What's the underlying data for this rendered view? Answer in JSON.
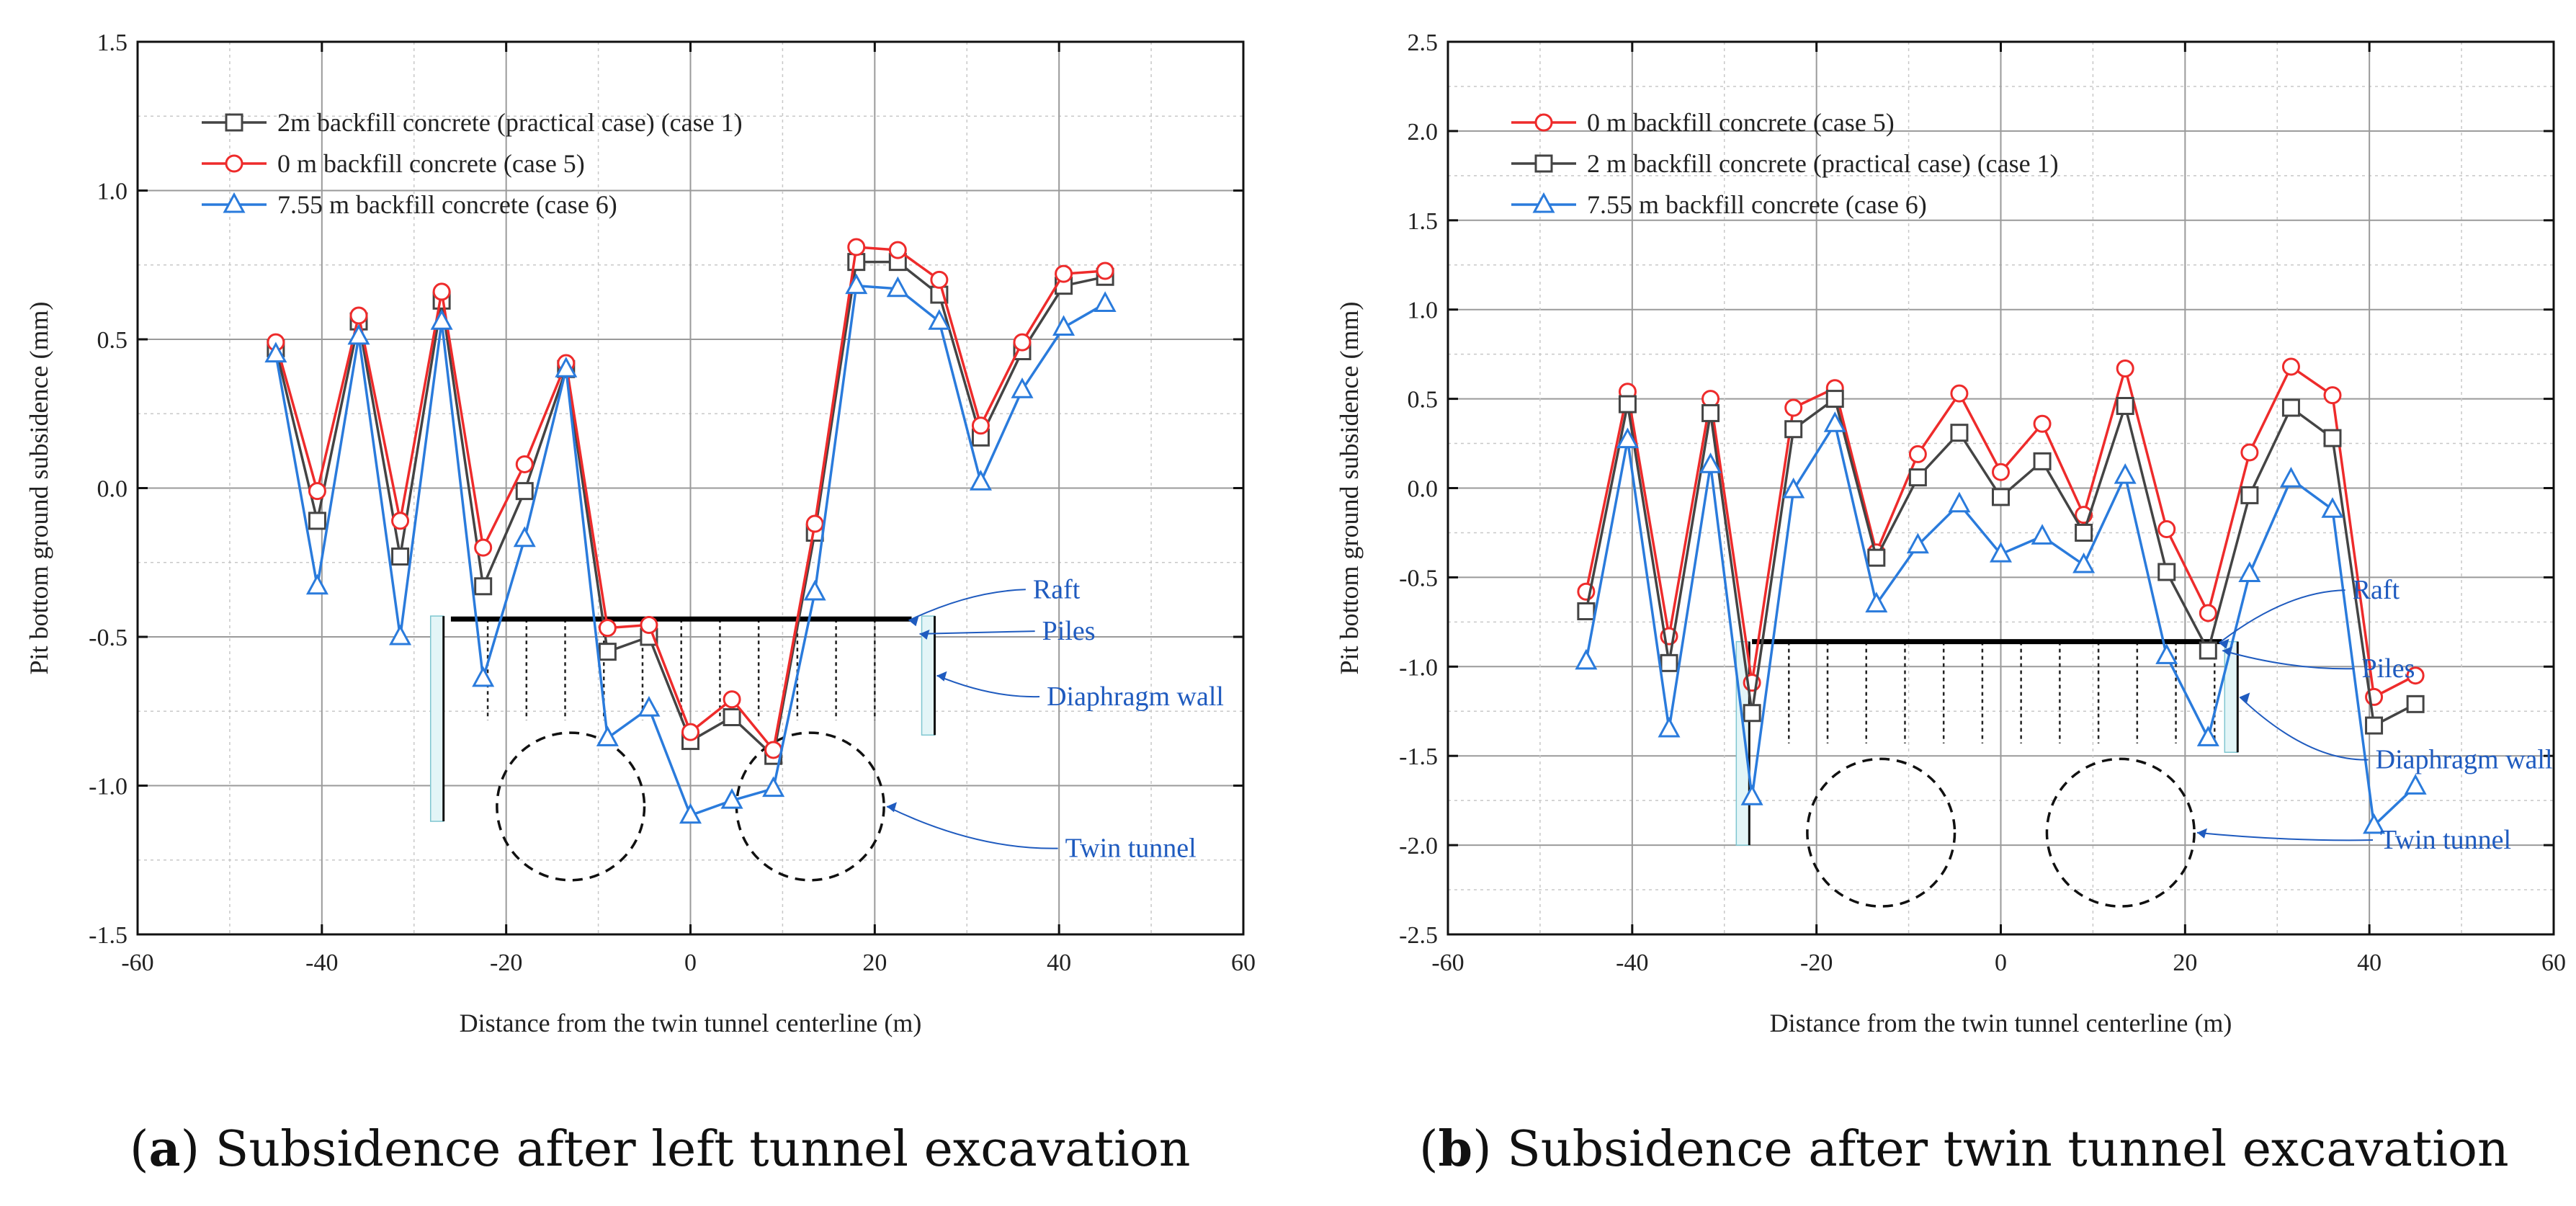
{
  "colors": {
    "case1": "#444444",
    "case5": "#ee2b2b",
    "case6": "#2a7bdc",
    "annot": "#1f5bbf"
  },
  "panels": [
    {
      "caption_letter": "a",
      "caption_text": " Subsidence after left tunnel excavation",
      "annotations": {
        "raft": "Raft",
        "piles": "Piles",
        "wall": "Diaphragm wall",
        "tunnel": "Twin tunnel"
      }
    },
    {
      "caption_letter": "b",
      "caption_text": " Subsidence after twin tunnel excavation",
      "annotations": {
        "raft": "Raft",
        "piles": "Piles",
        "wall": "Diaphragm wall",
        "tunnel": "Twin tunnel"
      }
    }
  ],
  "chart_data": [
    {
      "type": "line",
      "xlabel": "Distance from the twin tunnel centerline (m)",
      "ylabel": "Pit bottom ground subsidence  (mm)",
      "xlim": [
        -60,
        60
      ],
      "ylim": [
        -1.5,
        1.5
      ],
      "xticks": [
        -60,
        -40,
        -20,
        0,
        20,
        40,
        60
      ],
      "yticks": [
        -1.5,
        -1.0,
        -0.5,
        0.0,
        0.5,
        1.0,
        1.5
      ],
      "x": [
        -45,
        -40.5,
        -36,
        -31.5,
        -27,
        -22.5,
        -18,
        -13.5,
        -9,
        -4.5,
        0,
        4.5,
        9,
        13.5,
        18,
        22.5,
        27,
        31.5,
        36,
        40.5,
        45
      ],
      "series": [
        {
          "name": "2m backfill concrete (practical case) (case 1)",
          "key": "case1",
          "marker": "square",
          "values": [
            0.47,
            -0.11,
            0.56,
            -0.23,
            0.63,
            -0.33,
            -0.01,
            0.4,
            -0.55,
            -0.5,
            -0.85,
            -0.77,
            -0.9,
            -0.15,
            0.76,
            0.76,
            0.65,
            0.17,
            0.46,
            0.68,
            0.71
          ]
        },
        {
          "name": "0 m backfill concrete (case 5)",
          "key": "case5",
          "marker": "circle",
          "values": [
            0.49,
            -0.01,
            0.58,
            -0.11,
            0.66,
            -0.2,
            0.08,
            0.42,
            -0.47,
            -0.46,
            -0.82,
            -0.71,
            -0.88,
            -0.12,
            0.81,
            0.8,
            0.7,
            0.21,
            0.49,
            0.72,
            0.73
          ]
        },
        {
          "name": "7.55 m backfill concrete (case 6)",
          "key": "case6",
          "marker": "triangle",
          "values": [
            0.45,
            -0.33,
            0.51,
            -0.5,
            0.56,
            -0.64,
            -0.17,
            0.4,
            -0.84,
            -0.74,
            -1.1,
            -1.05,
            -1.01,
            -0.35,
            0.68,
            0.67,
            0.56,
            0.02,
            0.33,
            0.54,
            0.62
          ]
        }
      ]
    },
    {
      "type": "line",
      "xlabel": "Distance from the twin tunnel centerline (m)",
      "ylabel": "Pit bottom ground subsidence  (mm)",
      "xlim": [
        -60,
        60
      ],
      "ylim": [
        -2.5,
        2.5
      ],
      "xticks": [
        -60,
        -40,
        -20,
        0,
        20,
        40,
        60
      ],
      "yticks": [
        -2.5,
        -2.0,
        -1.5,
        -1.0,
        -0.5,
        0.0,
        0.5,
        1.0,
        1.5,
        2.0,
        2.5
      ],
      "x": [
        -45,
        -40.5,
        -36,
        -31.5,
        -27,
        -22.5,
        -18,
        -13.5,
        -9,
        -4.5,
        0,
        4.5,
        9,
        13.5,
        18,
        22.5,
        27,
        31.5,
        36,
        40.5,
        45
      ],
      "series": [
        {
          "name": "0 m backfill concrete (case 5)",
          "key": "case5",
          "marker": "circle",
          "values": [
            -0.58,
            0.54,
            -0.83,
            0.5,
            -1.09,
            0.45,
            0.56,
            -0.36,
            0.19,
            0.53,
            0.09,
            0.36,
            -0.15,
            0.67,
            -0.23,
            -0.7,
            0.2,
            0.68,
            0.52,
            -1.17,
            -1.05
          ]
        },
        {
          "name": "2 m backfill concrete (practical case) (case 1)",
          "key": "case1",
          "marker": "square",
          "values": [
            -0.69,
            0.47,
            -0.98,
            0.42,
            -1.26,
            0.33,
            0.5,
            -0.39,
            0.06,
            0.31,
            -0.05,
            0.15,
            -0.25,
            0.46,
            -0.47,
            -0.91,
            -0.04,
            0.45,
            0.28,
            -1.33,
            -1.21
          ]
        },
        {
          "name": "7.55 m backfill concrete (case 6)",
          "key": "case6",
          "marker": "triangle",
          "values": [
            -0.97,
            0.27,
            -1.35,
            0.13,
            -1.73,
            -0.01,
            0.36,
            -0.65,
            -0.32,
            -0.09,
            -0.37,
            -0.27,
            -0.43,
            0.07,
            -0.94,
            -1.4,
            -0.48,
            0.05,
            -0.12,
            -1.89,
            -1.67
          ]
        }
      ]
    }
  ]
}
